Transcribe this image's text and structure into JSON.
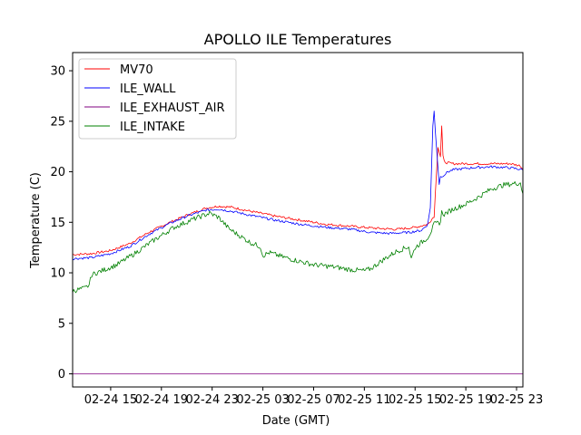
{
  "chart_data": {
    "type": "line",
    "title": "APOLLO ILE Temperatures",
    "xlabel": "Date (GMT)",
    "ylabel": "Temperature (C)",
    "grid": false,
    "legend_position": "top-left",
    "xlim": [
      12.0,
      47.5
    ],
    "ylim": [
      -1.3,
      31.8
    ],
    "x_unit": "hours since 02-24 00:00 GMT",
    "x_ticks": [
      {
        "value": 15,
        "label": "02-24 15"
      },
      {
        "value": 19,
        "label": "02-24 19"
      },
      {
        "value": 23,
        "label": "02-24 23"
      },
      {
        "value": 27,
        "label": "02-25 03"
      },
      {
        "value": 31,
        "label": "02-25 07"
      },
      {
        "value": 35,
        "label": "02-25 11"
      },
      {
        "value": 39,
        "label": "02-25 15"
      },
      {
        "value": 43,
        "label": "02-25 19"
      },
      {
        "value": 47,
        "label": "02-25 23"
      }
    ],
    "y_ticks": [
      {
        "value": 0,
        "label": "0"
      },
      {
        "value": 5,
        "label": "5"
      },
      {
        "value": 10,
        "label": "10"
      },
      {
        "value": 15,
        "label": "15"
      },
      {
        "value": 20,
        "label": "20"
      },
      {
        "value": 25,
        "label": "25"
      },
      {
        "value": 30,
        "label": "30"
      }
    ],
    "series": [
      {
        "name": "MV70",
        "color": "#ff0000",
        "x": [
          12.0,
          13.5,
          15.0,
          16.5,
          18.0,
          19.5,
          21.0,
          22.5,
          23.5,
          24.5,
          26.0,
          28.0,
          30.0,
          32.0,
          34.0,
          36.0,
          37.5,
          39.0,
          40.0,
          40.5,
          40.8,
          41.0,
          41.1,
          41.2,
          41.3,
          41.5,
          42.0,
          43.5,
          45.0,
          46.5,
          47.3,
          47.5
        ],
        "y": [
          11.8,
          11.9,
          12.2,
          12.9,
          14.0,
          14.9,
          15.7,
          16.4,
          16.6,
          16.5,
          16.1,
          15.6,
          15.2,
          14.8,
          14.6,
          14.4,
          14.3,
          14.5,
          14.8,
          15.6,
          22.5,
          21.5,
          24.5,
          21.5,
          21.0,
          20.9,
          20.8,
          20.8,
          20.8,
          20.8,
          20.6,
          20.2
        ]
      },
      {
        "name": "ILE_WALL",
        "color": "#0000ff",
        "x": [
          12.0,
          13.5,
          15.0,
          16.5,
          18.0,
          19.5,
          21.0,
          22.5,
          23.5,
          24.5,
          26.0,
          28.0,
          30.0,
          32.0,
          34.0,
          35.5,
          37.0,
          38.5,
          39.5,
          40.0,
          40.2,
          40.4,
          40.5,
          40.6,
          40.8,
          40.9,
          41.0,
          41.3,
          41.6,
          42.0,
          43.5,
          45.0,
          46.5,
          47.5
        ],
        "y": [
          11.4,
          11.5,
          11.9,
          12.6,
          13.8,
          14.8,
          15.6,
          16.2,
          16.3,
          16.1,
          15.7,
          15.2,
          14.8,
          14.5,
          14.3,
          14.0,
          13.9,
          14.0,
          14.2,
          14.8,
          16.5,
          24.5,
          26.0,
          24.0,
          20.5,
          18.8,
          19.5,
          19.7,
          20.0,
          20.2,
          20.4,
          20.5,
          20.4,
          20.2
        ]
      },
      {
        "name": "ILE_EXHAUST_AIR",
        "color": "#800080",
        "x": [
          12.0,
          47.5
        ],
        "y": [
          0.0,
          0.0
        ]
      },
      {
        "name": "ILE_INTAKE",
        "color": "#008000",
        "x": [
          12.0,
          13.0,
          13.3,
          13.5,
          14.5,
          15.5,
          17.0,
          18.5,
          20.0,
          21.5,
          22.8,
          23.5,
          24.3,
          25.0,
          26.0,
          26.8,
          27.0,
          27.5,
          28.5,
          30.0,
          31.0,
          32.5,
          34.0,
          35.0,
          35.5,
          36.5,
          37.5,
          38.5,
          38.7,
          39.0,
          39.5,
          40.0,
          40.3,
          40.5,
          41.0,
          41.1,
          41.3,
          42.0,
          43.0,
          44.0,
          45.0,
          46.0,
          47.3,
          47.5
        ],
        "y": [
          8.2,
          8.5,
          8.8,
          9.8,
          10.3,
          10.8,
          12.0,
          13.3,
          14.5,
          15.3,
          15.9,
          15.5,
          14.4,
          13.8,
          13.0,
          12.6,
          11.7,
          12.0,
          11.6,
          11.1,
          10.8,
          10.6,
          10.3,
          10.2,
          10.4,
          11.3,
          12.1,
          12.6,
          11.4,
          12.5,
          13.0,
          13.5,
          14.2,
          14.8,
          15.0,
          16.0,
          15.8,
          16.3,
          16.8,
          17.5,
          18.3,
          18.7,
          18.9,
          17.8
        ]
      }
    ]
  }
}
